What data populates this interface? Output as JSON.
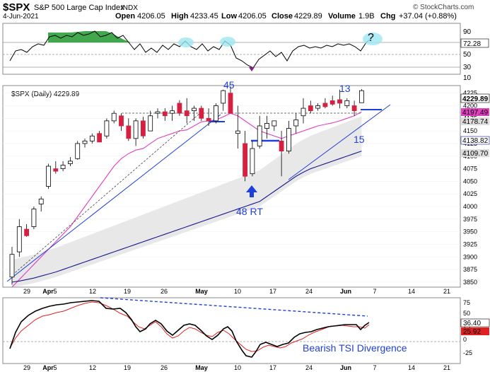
{
  "header": {
    "symbol": "$SPX",
    "name": "S&P 500 Large Cap Index",
    "exchange": "INDX",
    "date": "4-Jun-2021",
    "open_label": "Open",
    "open": "4206.05",
    "high_label": "High",
    "high": "4233.45",
    "low_label": "Low",
    "low": "4206.05",
    "close_label": "Close",
    "close": "4229.89",
    "volume_label": "Volume",
    "volume": "1.9B",
    "chg_label": "Chg",
    "chg": "+37.04 (+0.88%)",
    "watermark": "© StockCharts.com"
  },
  "colors": {
    "up": "#000000",
    "down": "#d62040",
    "ma_short": "#e040c0",
    "ma_long": "#1a1a8c",
    "band_fill": "#e4e4e4",
    "trendline": "#1f3fdb",
    "annotation": "#1f3fdb",
    "rsi_fill": "#2e9e3a",
    "circle": "#9ee6f0",
    "tsi": "#000000",
    "signal": "#e02020"
  },
  "rsi_panel": {
    "levels": [
      "90",
      "70",
      "50",
      "30",
      "10"
    ],
    "value_label": "72.28",
    "question": "?"
  },
  "price_panel": {
    "legend": "$SPX (Daily) 4229.89",
    "axis_ticks": [
      "4225",
      "4200",
      "4175",
      "4150",
      "4125",
      "4100",
      "4075",
      "4050",
      "4025",
      "4000",
      "3975",
      "3950",
      "3925",
      "3900",
      "3875",
      "3850"
    ],
    "tags": [
      "4229.89",
      "4197.49",
      "4178.74",
      "4138.82",
      "4109.70"
    ],
    "annotations": {
      "a45": "45",
      "a13": "13",
      "a15": "15",
      "rt": "48 RT"
    }
  },
  "tsi_panel": {
    "axis_ticks": [
      "75",
      "50",
      "25",
      "0",
      "-25"
    ],
    "tags": [
      "36.40",
      "25.92"
    ],
    "label": "Bearish TSI Divergence"
  },
  "x_axis": {
    "labels": [
      "29",
      "Apr",
      "5",
      "12",
      "19",
      "26",
      "May",
      "10",
      "17",
      "24",
      "Jun",
      "7",
      "14",
      "21"
    ]
  },
  "chart_data": {
    "type": "candlestick",
    "title": "$SPX S&P 500 Large Cap Index INDX",
    "ylim": [
      3840,
      4240
    ],
    "dates": [
      "2021-03-26",
      "2021-03-29",
      "2021-03-30",
      "2021-03-31",
      "2021-04-01",
      "2021-04-05",
      "2021-04-06",
      "2021-04-07",
      "2021-04-08",
      "2021-04-09",
      "2021-04-12",
      "2021-04-13",
      "2021-04-14",
      "2021-04-15",
      "2021-04-16",
      "2021-04-19",
      "2021-04-20",
      "2021-04-21",
      "2021-04-22",
      "2021-04-23",
      "2021-04-26",
      "2021-04-27",
      "2021-04-28",
      "2021-04-29",
      "2021-04-30",
      "2021-05-03",
      "2021-05-04",
      "2021-05-05",
      "2021-05-06",
      "2021-05-07",
      "2021-05-10",
      "2021-05-11",
      "2021-05-12",
      "2021-05-13",
      "2021-05-14",
      "2021-05-17",
      "2021-05-18",
      "2021-05-19",
      "2021-05-20",
      "2021-05-21",
      "2021-05-24",
      "2021-05-25",
      "2021-05-26",
      "2021-05-27",
      "2021-05-28",
      "2021-06-01",
      "2021-06-02",
      "2021-06-03",
      "2021-06-04"
    ],
    "open": [
      3860,
      3910,
      3955,
      3960,
      4005,
      4040,
      4075,
      4075,
      4085,
      4095,
      4125,
      4130,
      4145,
      4140,
      4170,
      4180,
      4160,
      4135,
      4170,
      4150,
      4185,
      4188,
      4185,
      4205,
      4190,
      4190,
      4195,
      4175,
      4170,
      4205,
      4225,
      4145,
      4125,
      4065,
      4120,
      4155,
      4160,
      4130,
      4110,
      4160,
      4180,
      4200,
      4195,
      4205,
      4210,
      4212,
      4200,
      4200,
      4206
    ],
    "high": [
      3920,
      3975,
      3965,
      4000,
      4020,
      4085,
      4090,
      4090,
      4098,
      4130,
      4135,
      4145,
      4150,
      4175,
      4190,
      4185,
      4175,
      4175,
      4178,
      4190,
      4195,
      4195,
      4200,
      4211,
      4215,
      4200,
      4200,
      4195,
      4205,
      4232,
      4238,
      4200,
      4150,
      4130,
      4180,
      4180,
      4170,
      4150,
      4170,
      4185,
      4215,
      4210,
      4205,
      4215,
      4220,
      4232,
      4215,
      4210,
      4233
    ],
    "low": [
      3845,
      3900,
      3940,
      3955,
      3990,
      4035,
      4065,
      4070,
      4080,
      4093,
      4117,
      4125,
      4130,
      4135,
      4165,
      4150,
      4130,
      4120,
      4135,
      4150,
      4175,
      4170,
      4170,
      4180,
      4165,
      4170,
      4170,
      4160,
      4165,
      4190,
      4185,
      4115,
      4050,
      4060,
      4115,
      4135,
      4150,
      4060,
      4105,
      4145,
      4165,
      4185,
      4190,
      4195,
      4200,
      4195,
      4195,
      4180,
      4206
    ],
    "close": [
      3905,
      3960,
      3942,
      3995,
      4015,
      4080,
      4070,
      4082,
      4090,
      4125,
      4130,
      4140,
      4128,
      4170,
      4185,
      4160,
      4135,
      4170,
      4140,
      4180,
      4188,
      4180,
      4190,
      4185,
      4180,
      4195,
      4175,
      4170,
      4200,
      4230,
      4185,
      4150,
      4060,
      4115,
      4160,
      4165,
      4170,
      4110,
      4155,
      4172,
      4195,
      4190,
      4200,
      4198,
      4203,
      4205,
      4210,
      4190,
      4229.89
    ],
    "series": [
      {
        "name": "MA short",
        "values": [
          3840,
          3855,
          3870,
          3885,
          3900,
          3915,
          3930,
          3945,
          3960,
          3980,
          4000,
          4020,
          4040,
          4060,
          4080,
          4095,
          4105,
          4112,
          4115,
          4125,
          4135,
          4140,
          4145,
          4150,
          4152,
          4160,
          4168,
          4170,
          4172,
          4178,
          4185,
          4180,
          4170,
          4160,
          4150,
          4145,
          4140,
          4135,
          4140,
          4145,
          4150,
          4155,
          4160,
          4163,
          4166,
          4170,
          4175,
          4180,
          4188
        ]
      },
      {
        "name": "MA long",
        "values": [
          3850,
          3852,
          3855,
          3858,
          3862,
          3866,
          3870,
          3875,
          3880,
          3885,
          3890,
          3895,
          3900,
          3905,
          3910,
          3915,
          3920,
          3925,
          3930,
          3935,
          3940,
          3945,
          3950,
          3955,
          3960,
          3965,
          3970,
          3975,
          3980,
          3985,
          3990,
          3995,
          4000,
          4005,
          4010,
          4020,
          4030,
          4040,
          4050,
          4060,
          4068,
          4075,
          4080,
          4085,
          4090,
          4095,
          4100,
          4105,
          4110
        ]
      }
    ],
    "tsi": {
      "x": [
        0,
        5,
        10,
        15,
        20,
        25,
        30,
        35,
        40,
        45
      ],
      "tsi": [
        45,
        52,
        60,
        70,
        62,
        55,
        40,
        -10,
        15,
        28
      ],
      "signal": [
        15,
        40,
        55,
        66,
        60,
        56,
        50,
        20,
        10,
        25
      ]
    }
  }
}
